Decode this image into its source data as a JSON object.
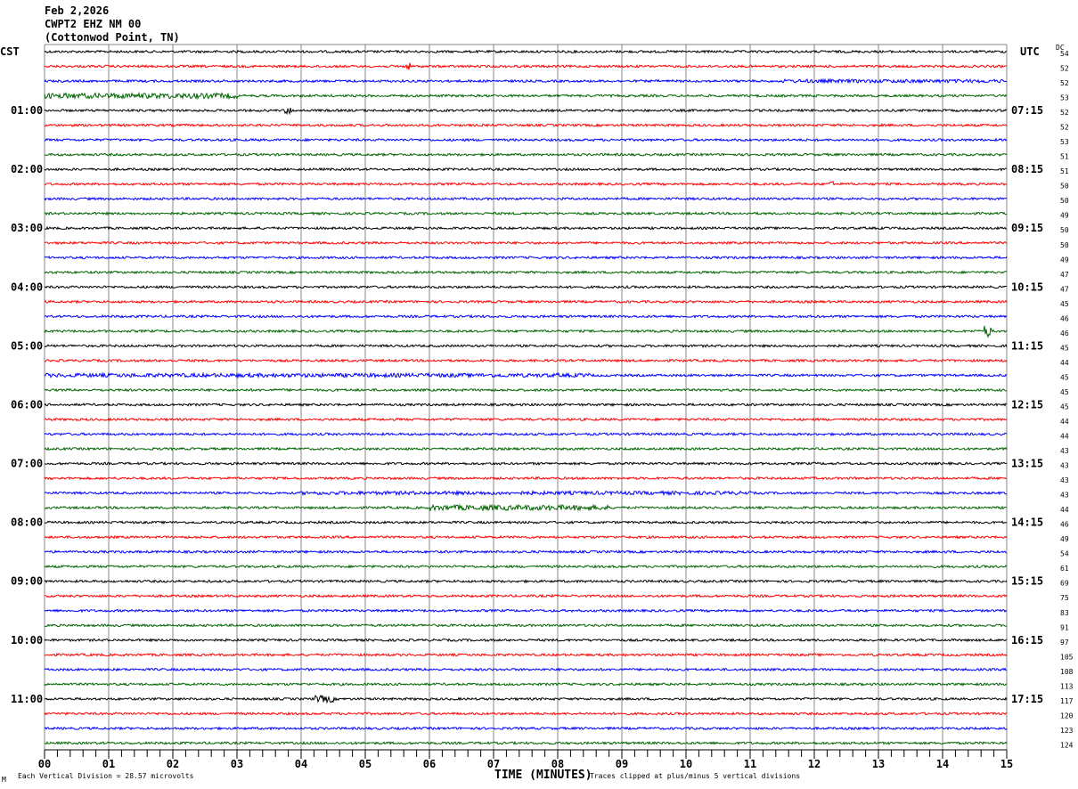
{
  "header": {
    "date": "Feb 2,2026",
    "station": "CWPT2 EHZ NM 00",
    "location": "(Cottonwod Point, TN)"
  },
  "footer": {
    "scale_note": "Each Vertical Division =   28.57 microvolts",
    "clip_note": "Traces clipped at plus/minus 5 vertical divisions"
  },
  "chart_data": {
    "type": "line",
    "subtype": "helicorder",
    "xlabel": "TIME (MINUTES)",
    "xlim": [
      0,
      15
    ],
    "x_ticks": [
      "00",
      "01",
      "02",
      "03",
      "04",
      "05",
      "06",
      "07",
      "08",
      "09",
      "10",
      "11",
      "12",
      "13",
      "14",
      "15"
    ],
    "minor_ticks_per_minute": 5,
    "grid": "vertical lines every minute",
    "left_timezone": "CST",
    "right_timezone": "UTC",
    "left_labels": [
      "CST",
      "01:00",
      "02:00",
      "03:00",
      "04:00",
      "05:00",
      "06:00",
      "07:00",
      "08:00",
      "09:00",
      "10:00",
      "11:00"
    ],
    "right_labels": [
      "UTC",
      "07:15",
      "08:15",
      "09:15",
      "10:15",
      "11:15",
      "12:15",
      "13:15",
      "14:15",
      "15:15",
      "16:15",
      "17:15"
    ],
    "rows_per_label": 4,
    "dc_header": "DC",
    "dc_values": [
      54,
      52,
      52,
      53,
      52,
      52,
      53,
      51,
      51,
      50,
      50,
      49,
      50,
      50,
      49,
      47,
      47,
      45,
      46,
      46,
      45,
      44,
      45,
      45,
      45,
      44,
      44,
      43,
      43,
      43,
      43,
      44,
      46,
      49,
      54,
      61,
      69,
      75,
      83,
      91,
      97,
      105,
      108,
      113,
      117,
      120,
      123,
      124
    ],
    "trace_colors": [
      "#000000",
      "#ff0000",
      "#0000ff",
      "#006400"
    ],
    "events": [
      {
        "row": 3,
        "start_min": 0,
        "end_min": 3,
        "amp": 3
      },
      {
        "row": 4,
        "start_min": 3.75,
        "end_min": 3.85,
        "amp": 4
      },
      {
        "row": 22,
        "start_min": 0,
        "end_min": 8.5,
        "amp": 2.2
      },
      {
        "row": 30,
        "start_min": 4,
        "end_min": 11,
        "amp": 2
      },
      {
        "row": 31,
        "start_min": 6,
        "end_min": 8.8,
        "amp": 3
      },
      {
        "row": 19,
        "start_min": 14.65,
        "end_min": 14.75,
        "amp": 7
      },
      {
        "row": 44,
        "start_min": 4.2,
        "end_min": 4.5,
        "amp": 4
      },
      {
        "row": 1,
        "start_min": 5.6,
        "end_min": 5.7,
        "amp": 4
      },
      {
        "row": 9,
        "start_min": 12.25,
        "end_min": 12.3,
        "amp": 5
      },
      {
        "row": 2,
        "start_min": 11.5,
        "end_min": 15,
        "amp": 2
      }
    ]
  }
}
